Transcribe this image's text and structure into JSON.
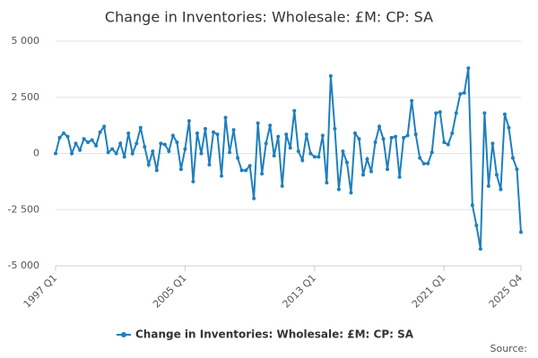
{
  "chart_data": {
    "type": "line",
    "title": "Change in Inventories: Wholesale: £M: CP: SA",
    "categories": [
      "1997 Q1",
      null,
      null,
      null,
      null,
      null,
      null,
      null,
      null,
      null,
      null,
      null,
      null,
      null,
      null,
      null,
      null,
      null,
      null,
      null,
      null,
      null,
      null,
      null,
      null,
      null,
      null,
      null,
      null,
      null,
      null,
      null,
      "2005 Q1",
      null,
      null,
      null,
      null,
      null,
      null,
      null,
      null,
      null,
      null,
      null,
      null,
      null,
      null,
      null,
      null,
      null,
      null,
      null,
      null,
      null,
      null,
      null,
      null,
      null,
      null,
      null,
      null,
      null,
      null,
      null,
      "2013 Q1",
      null,
      null,
      null,
      null,
      null,
      null,
      null,
      null,
      null,
      null,
      null,
      null,
      null,
      null,
      null,
      null,
      null,
      null,
      null,
      null,
      null,
      null,
      null,
      null,
      null,
      null,
      null,
      null,
      null,
      null,
      null,
      "2021 Q1",
      null,
      null,
      null,
      null,
      null,
      null,
      null,
      null,
      null,
      null,
      null,
      null,
      null,
      null,
      null,
      null,
      null,
      null,
      "2025 Q4"
    ],
    "series": [
      {
        "name": "Change in Inventories: Wholesale: £M: CP: SA",
        "color": "#1f7fbd",
        "values": [
          0,
          700,
          900,
          750,
          0,
          450,
          150,
          650,
          500,
          600,
          350,
          950,
          1200,
          50,
          200,
          0,
          450,
          -150,
          900,
          0,
          450,
          1150,
          300,
          -500,
          100,
          -750,
          450,
          400,
          100,
          800,
          500,
          -700,
          200,
          1450,
          -1250,
          900,
          0,
          1100,
          -500,
          950,
          850,
          -1000,
          1600,
          50,
          1050,
          -200,
          -750,
          -750,
          -550,
          -2000,
          1350,
          -900,
          450,
          1250,
          -100,
          750,
          -1450,
          850,
          250,
          1900,
          100,
          -300,
          850,
          0,
          -150,
          -150,
          800,
          -1300,
          3450,
          1100,
          -1600,
          100,
          -400,
          -1750,
          900,
          650,
          -950,
          -250,
          -800,
          500,
          1200,
          650,
          -700,
          700,
          750,
          -1050,
          700,
          800,
          2350,
          850,
          -200,
          -450,
          -450,
          50,
          1800,
          1850,
          500,
          400,
          900,
          1800,
          2650,
          2700,
          3800,
          -2300,
          -3200,
          -4250,
          1800,
          -1450,
          450,
          -950,
          -1600,
          1750,
          1150,
          -200,
          -700,
          -3500
        ]
      }
    ],
    "ylim": [
      -5000,
      5000
    ],
    "yticks": [
      {
        "value": -5000,
        "label": "-5 000"
      },
      {
        "value": -2500,
        "label": "-2 500"
      },
      0,
      {
        "value": 2500,
        "label": "2 500"
      },
      {
        "value": 5000,
        "label": "5 000"
      }
    ],
    "grid": true,
    "legend": "bottom",
    "source": "Source:"
  }
}
